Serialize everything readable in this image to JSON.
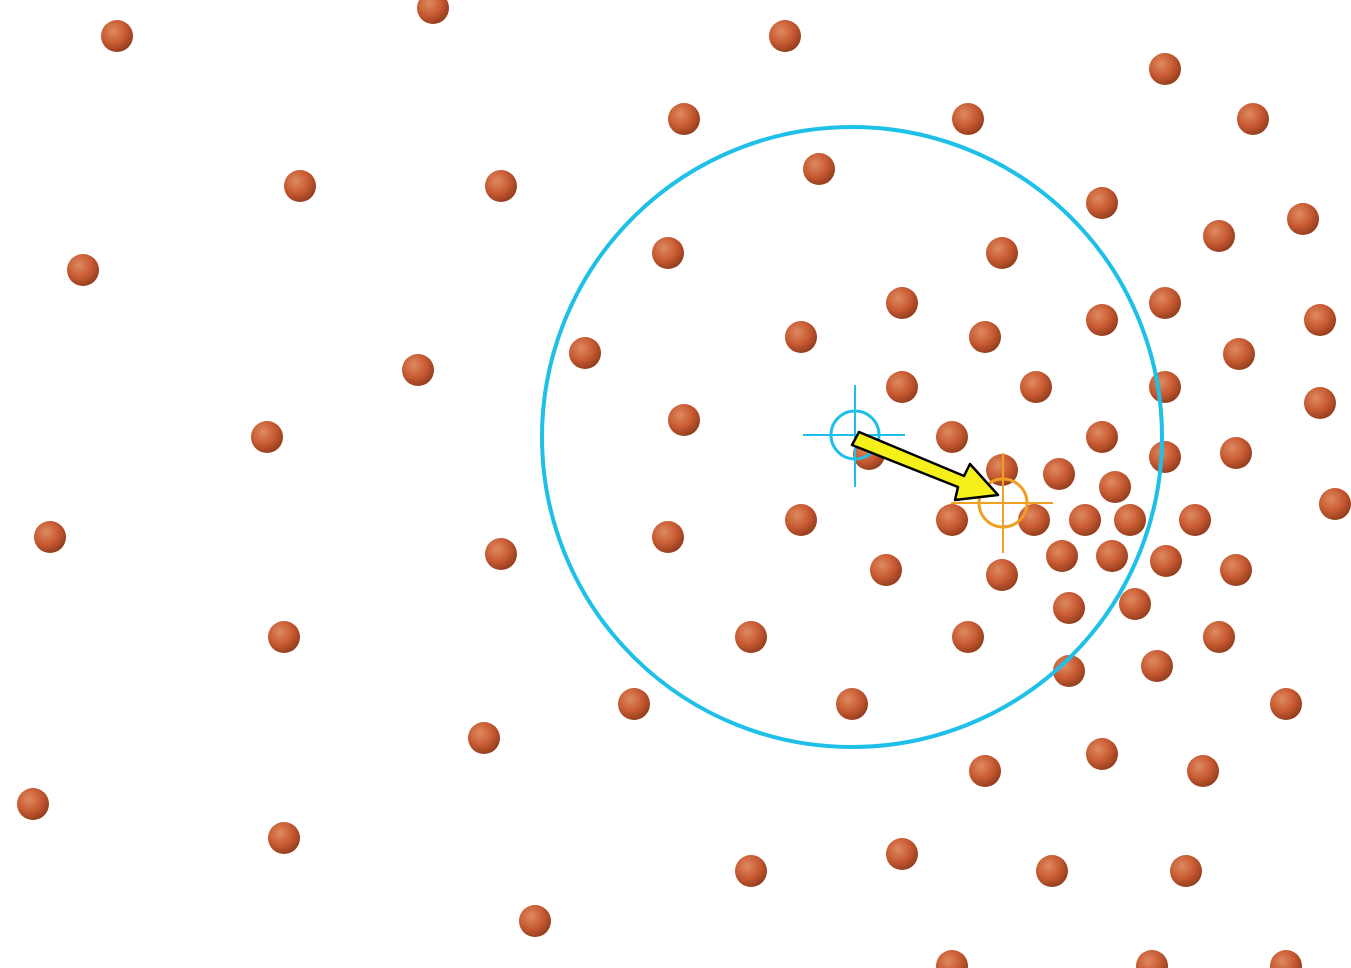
{
  "diagram": {
    "colors": {
      "background": "#ffffff",
      "dot": "#c85a32",
      "dot_highlight": "#de8a60",
      "dot_shadow": "#8f3b1c",
      "search_circle": "#1ec0e8",
      "start_marker": "#1ec0e8",
      "end_marker": "#f0a020",
      "arrow_fill": "#f5f01a",
      "arrow_stroke": "#000000"
    },
    "elements": {
      "dots": "point-dot",
      "search_circle": "search-radius-circle",
      "start_marker": "start-crosshair-marker",
      "end_marker": "target-crosshair-marker",
      "arrow": "shift-arrow"
    }
  }
}
